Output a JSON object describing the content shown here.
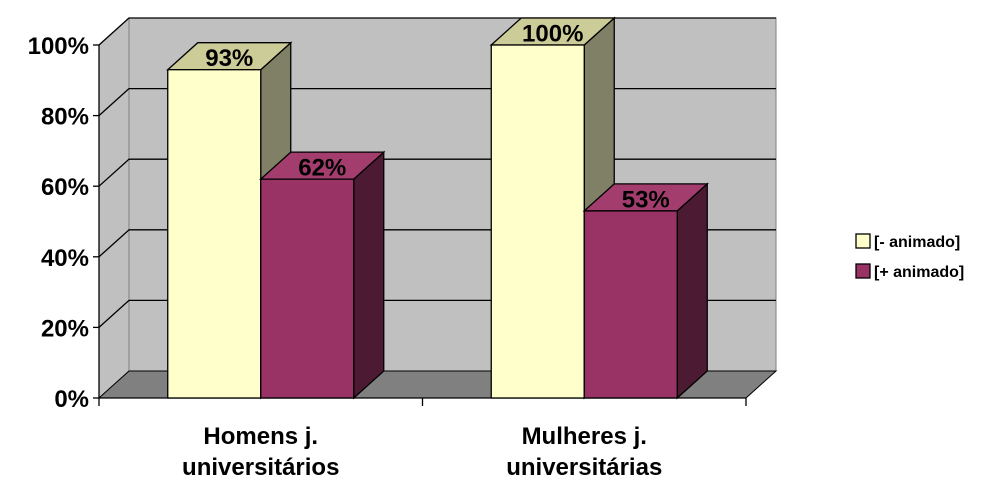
{
  "chart_data": {
    "type": "bar",
    "style": "3d-clustered-column",
    "categories": [
      [
        "Homens j.",
        "universitários"
      ],
      [
        "Mulheres j.",
        "universitárias"
      ]
    ],
    "series": [
      {
        "name": "[- animado]",
        "values": [
          93,
          100
        ],
        "labels": [
          "93%",
          "100%"
        ],
        "color": "#ffffcc"
      },
      {
        "name": "[+ animado]",
        "values": [
          62,
          53
        ],
        "labels": [
          "62%",
          "53%"
        ],
        "color": "#993366"
      }
    ],
    "y_ticks": [
      "0%",
      "20%",
      "40%",
      "60%",
      "80%",
      "100%"
    ],
    "ylim": [
      0,
      100
    ],
    "grid": true,
    "legend_position": "right",
    "colors": {
      "back_wall": "#c0c0c0",
      "side_wall": "#c0c0c0",
      "floor": "#808080",
      "gridline": "#000000",
      "series1_top": "#cccc99",
      "series1_side": "#808066",
      "series2_top": "#a33d6e",
      "series2_side": "#4d1a33"
    }
  }
}
